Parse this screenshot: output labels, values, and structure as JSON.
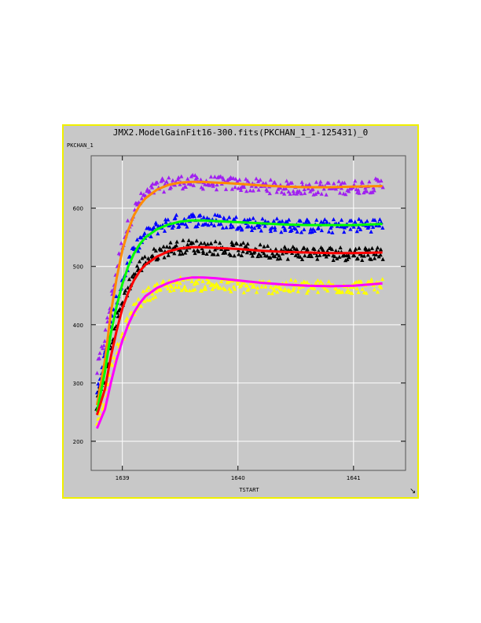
{
  "window": {
    "resize_glyph": "↘"
  },
  "chart_data": {
    "type": "scatter",
    "title": "JMX2.ModelGainFit16-300.fits(PKCHAN_1_1-125431)_0",
    "xlabel": "TSTART",
    "ylabel": "PKCHAN_1",
    "xlim": [
      1638.73,
      1641.45
    ],
    "ylim": [
      150,
      690
    ],
    "x_ticks": [
      {
        "value": 1639,
        "label": "1639"
      },
      {
        "value": 1640,
        "label": "1640"
      },
      {
        "value": 1641,
        "label": "1641"
      }
    ],
    "y_ticks": [
      {
        "value": 200,
        "label": "200"
      },
      {
        "value": 300,
        "label": "300"
      },
      {
        "value": 400,
        "label": "400"
      },
      {
        "value": 500,
        "label": "500"
      },
      {
        "value": 600,
        "label": "600"
      }
    ],
    "grid": true,
    "series": [
      {
        "kind": "points",
        "color": "#a020f0",
        "x": [
          1638.78,
          1638.85,
          1638.9,
          1638.95,
          1639.0,
          1639.05,
          1639.1,
          1639.15,
          1639.2,
          1639.3,
          1639.4,
          1639.5,
          1639.6,
          1639.7,
          1639.8,
          1639.9,
          1640.0,
          1640.2,
          1640.4,
          1640.6,
          1640.8,
          1641.0,
          1641.25
        ],
        "y": [
          320,
          380,
          440,
          495,
          540,
          570,
          595,
          612,
          623,
          636,
          642,
          645,
          645,
          644,
          643,
          642,
          641,
          638,
          635,
          634,
          634,
          636,
          640
        ]
      },
      {
        "kind": "points",
        "color": "#0000ff",
        "x": [
          1638.78,
          1638.85,
          1638.9,
          1638.95,
          1639.0,
          1639.05,
          1639.1,
          1639.15,
          1639.2,
          1639.3,
          1639.4,
          1639.5,
          1639.6,
          1639.7,
          1639.8,
          1639.9,
          1640.0,
          1640.2,
          1640.4,
          1640.6,
          1640.8,
          1641.0,
          1641.25
        ],
        "y": [
          290,
          345,
          395,
          440,
          475,
          505,
          525,
          542,
          553,
          566,
          574,
          578,
          580,
          579,
          578,
          576,
          575,
          572,
          570,
          569,
          569,
          570,
          572
        ]
      },
      {
        "kind": "points",
        "color": "#000000",
        "x": [
          1638.78,
          1638.85,
          1638.9,
          1638.95,
          1639.0,
          1639.05,
          1639.1,
          1639.15,
          1639.2,
          1639.3,
          1639.4,
          1639.5,
          1639.6,
          1639.7,
          1639.8,
          1639.9,
          1640.0,
          1640.2,
          1640.4,
          1640.6,
          1640.8,
          1641.0,
          1641.25
        ],
        "y": [
          265,
          315,
          365,
          405,
          440,
          465,
          485,
          500,
          510,
          522,
          530,
          533,
          534,
          533,
          532,
          530,
          529,
          526,
          524,
          523,
          522,
          522,
          523
        ]
      },
      {
        "kind": "points",
        "color": "#ffff00",
        "x": [
          1638.78,
          1638.85,
          1638.9,
          1638.95,
          1639.0,
          1639.05,
          1639.1,
          1639.15,
          1639.2,
          1639.3,
          1639.4,
          1639.5,
          1639.6,
          1639.7,
          1639.8,
          1639.9,
          1640.0,
          1640.2,
          1640.4,
          1640.6,
          1640.8,
          1641.0,
          1641.25
        ],
        "y": [
          235,
          275,
          315,
          350,
          380,
          405,
          425,
          440,
          450,
          461,
          467,
          470,
          470,
          469,
          468,
          467,
          466,
          465,
          465,
          464,
          465,
          465,
          466
        ]
      },
      {
        "kind": "fit",
        "color": "#ff8c00",
        "x": [
          1638.78,
          1638.85,
          1638.9,
          1638.95,
          1639.0,
          1639.05,
          1639.1,
          1639.15,
          1639.2,
          1639.3,
          1639.4,
          1639.5,
          1639.6,
          1639.7,
          1639.8,
          1639.9,
          1640.0,
          1640.2,
          1640.4,
          1640.6,
          1640.8,
          1641.0,
          1641.25
        ],
        "y": [
          262,
          340,
          420,
          480,
          528,
          562,
          588,
          605,
          617,
          632,
          640,
          644,
          645,
          645,
          644,
          643,
          642,
          639,
          637,
          636,
          636,
          637,
          638
        ]
      },
      {
        "kind": "fit",
        "color": "#00ff00",
        "x": [
          1638.78,
          1638.85,
          1638.9,
          1638.95,
          1639.0,
          1639.05,
          1639.1,
          1639.15,
          1639.2,
          1639.3,
          1639.4,
          1639.5,
          1639.6,
          1639.7,
          1639.8,
          1639.9,
          1640.0,
          1640.2,
          1640.4,
          1640.6,
          1640.8,
          1641.0,
          1641.25
        ],
        "y": [
          250,
          320,
          385,
          432,
          470,
          500,
          522,
          538,
          550,
          564,
          572,
          577,
          579,
          579,
          578,
          577,
          576,
          574,
          572,
          571,
          571,
          571,
          573
        ]
      },
      {
        "kind": "fit",
        "color": "#ff0000",
        "x": [
          1638.78,
          1638.85,
          1638.9,
          1638.95,
          1639.0,
          1639.05,
          1639.1,
          1639.15,
          1639.2,
          1639.3,
          1639.4,
          1639.5,
          1639.6,
          1639.7,
          1639.8,
          1639.9,
          1640.0,
          1640.2,
          1640.4,
          1640.6,
          1640.8,
          1641.0,
          1641.25
        ],
        "y": [
          245,
          290,
          345,
          390,
          428,
          455,
          476,
          492,
          503,
          517,
          526,
          531,
          533,
          533,
          532,
          531,
          530,
          527,
          525,
          524,
          523,
          523,
          524
        ]
      },
      {
        "kind": "fit",
        "color": "#ff00ff",
        "x": [
          1638.78,
          1638.85,
          1638.9,
          1638.95,
          1639.0,
          1639.05,
          1639.1,
          1639.15,
          1639.2,
          1639.3,
          1639.4,
          1639.5,
          1639.6,
          1639.7,
          1639.8,
          1639.9,
          1640.0,
          1640.2,
          1640.4,
          1640.6,
          1640.8,
          1641.0,
          1641.25
        ],
        "y": [
          222,
          255,
          300,
          340,
          373,
          400,
          421,
          437,
          449,
          463,
          472,
          478,
          481,
          481,
          480,
          478,
          476,
          472,
          469,
          467,
          466,
          467,
          471
        ]
      }
    ]
  }
}
